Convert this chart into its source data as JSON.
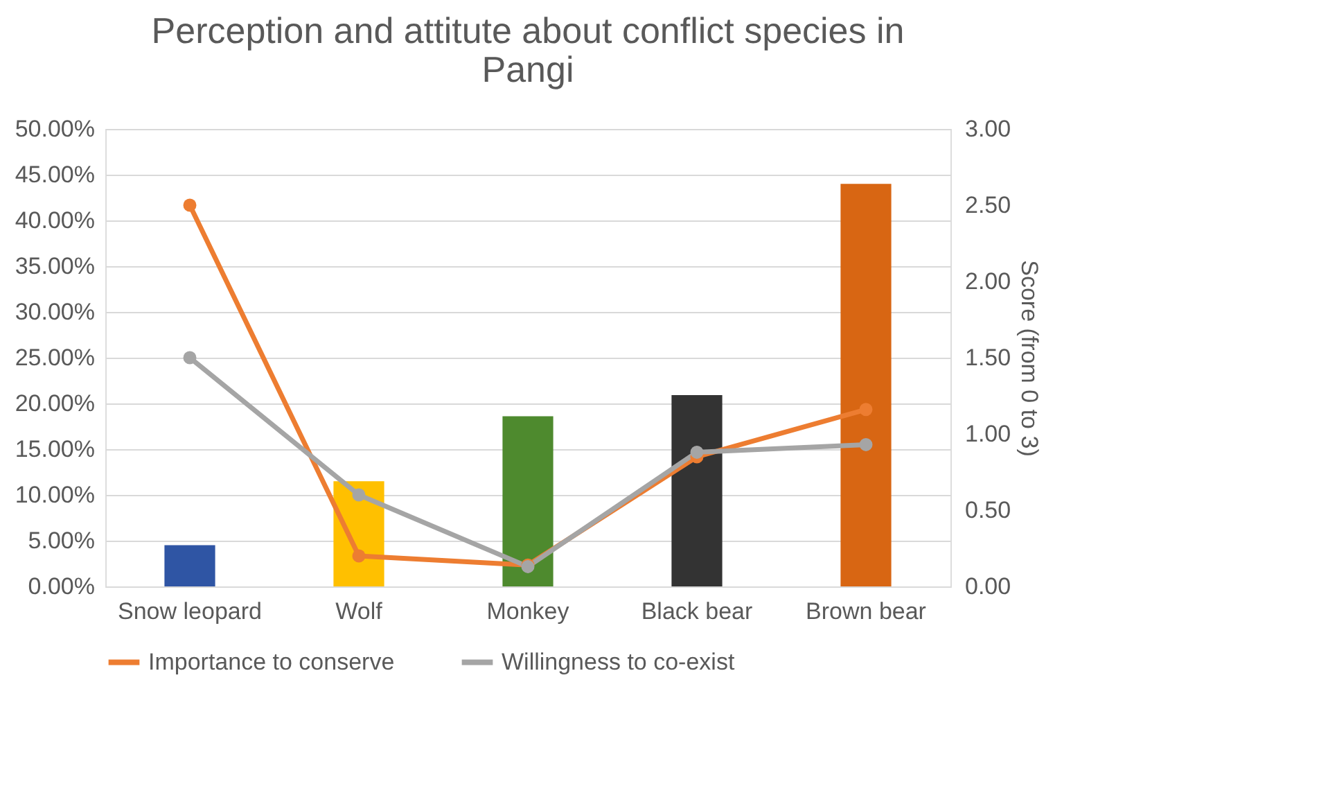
{
  "chart_data": {
    "type": "bar",
    "title": "Perception and attitute about conflict species in Pangi",
    "y2label": "Score (from 0 to 3)",
    "categories": [
      "Snow leopard",
      "Wolf",
      "Monkey",
      "Black bear",
      "Brown bear"
    ],
    "series": [
      {
        "colors": [
          "#2f55a4",
          "#ffc000",
          "#4e8a2e",
          "#333333",
          "#d86613"
        ],
        "values": [
          4.5,
          11.5,
          18.6,
          20.9,
          44.0
        ]
      },
      {
        "type": "line",
        "axis": "y2",
        "name": "Importance to conserve",
        "color": "#ed7d31",
        "values": [
          2.5,
          0.2,
          0.14,
          0.85,
          1.16
        ]
      },
      {
        "type": "line",
        "axis": "y2",
        "name": "Willingness to co-exist",
        "color": "#a5a5a5",
        "values": [
          1.5,
          0.6,
          0.13,
          0.88,
          0.93
        ]
      }
    ],
    "ylim": [
      0,
      50
    ],
    "yticks": [
      {
        "value": 0,
        "label": "0.00%"
      },
      {
        "value": 5,
        "label": "5.00%"
      },
      {
        "value": 10,
        "label": "10.00%"
      },
      {
        "value": 15,
        "label": "15.00%"
      },
      {
        "value": 20,
        "label": "20.00%"
      },
      {
        "value": 25,
        "label": "25.00%"
      },
      {
        "value": 30,
        "label": "30.00%"
      },
      {
        "value": 35,
        "label": "35.00%"
      },
      {
        "value": 40,
        "label": "40.00%"
      },
      {
        "value": 45,
        "label": "45.00%"
      },
      {
        "value": 50,
        "label": "50.00%"
      }
    ],
    "y2lim": [
      0,
      3
    ],
    "y2ticks": [
      {
        "value": 0,
        "label": "0.00"
      },
      {
        "value": 0.5,
        "label": "0.50"
      },
      {
        "value": 1,
        "label": "1.00"
      },
      {
        "value": 1.5,
        "label": "1.50"
      },
      {
        "value": 2,
        "label": "2.00"
      },
      {
        "value": 2.5,
        "label": "2.50"
      },
      {
        "value": 3,
        "label": "3.00"
      }
    ],
    "grid": "y",
    "legend": "bottom",
    "marker": "circle",
    "line_style": "solid"
  }
}
